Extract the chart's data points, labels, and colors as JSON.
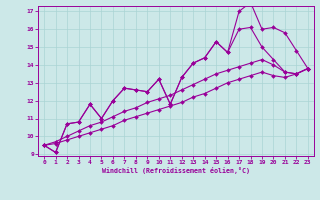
{
  "xlabel": "Windchill (Refroidissement éolien,°C)",
  "background_color": "#cce8e8",
  "line_color": "#990099",
  "grid_color": "#aad4d4",
  "series1_x": [
    0,
    1,
    2,
    3,
    4,
    5,
    6,
    7,
    8,
    9,
    10,
    11,
    12,
    13,
    14,
    15,
    16,
    17,
    18,
    19,
    20,
    21,
    22,
    23
  ],
  "series1_y": [
    9.5,
    9.1,
    10.7,
    10.8,
    11.8,
    11.0,
    12.0,
    12.7,
    12.6,
    12.5,
    13.2,
    11.8,
    13.3,
    14.1,
    14.4,
    15.3,
    14.7,
    17.0,
    17.5,
    16.0,
    16.1,
    15.8,
    14.8,
    13.8
  ],
  "series2_x": [
    0,
    1,
    2,
    3,
    4,
    5,
    6,
    7,
    8,
    9,
    10,
    11,
    12,
    13,
    14,
    15,
    16,
    17,
    18,
    19,
    20,
    21,
    22,
    23
  ],
  "series2_y": [
    9.5,
    9.1,
    10.7,
    10.8,
    11.8,
    11.0,
    12.0,
    12.7,
    12.6,
    12.5,
    13.2,
    11.8,
    13.3,
    14.1,
    14.4,
    15.3,
    14.7,
    16.0,
    16.1,
    15.0,
    14.3,
    13.6,
    13.5,
    13.8
  ],
  "series3_x": [
    0,
    1,
    2,
    3,
    4,
    5,
    6,
    7,
    8,
    9,
    10,
    11,
    12,
    13,
    14,
    15,
    16,
    17,
    18,
    19,
    20,
    21,
    22,
    23
  ],
  "series3_y": [
    9.5,
    9.7,
    10.0,
    10.3,
    10.6,
    10.8,
    11.1,
    11.4,
    11.6,
    11.9,
    12.1,
    12.3,
    12.6,
    12.9,
    13.2,
    13.5,
    13.7,
    13.9,
    14.1,
    14.3,
    14.0,
    13.6,
    13.5,
    13.8
  ],
  "series4_x": [
    0,
    1,
    2,
    3,
    4,
    5,
    6,
    7,
    8,
    9,
    10,
    11,
    12,
    13,
    14,
    15,
    16,
    17,
    18,
    19,
    20,
    21,
    22,
    23
  ],
  "series4_y": [
    9.5,
    9.6,
    9.8,
    10.0,
    10.2,
    10.4,
    10.6,
    10.9,
    11.1,
    11.3,
    11.5,
    11.7,
    11.9,
    12.2,
    12.4,
    12.7,
    13.0,
    13.2,
    13.4,
    13.6,
    13.4,
    13.3,
    13.5,
    13.8
  ],
  "ylim": [
    9,
    17
  ],
  "xlim": [
    -0.5,
    23.5
  ],
  "yticks": [
    9,
    10,
    11,
    12,
    13,
    14,
    15,
    16,
    17
  ],
  "xticks": [
    0,
    1,
    2,
    3,
    4,
    5,
    6,
    7,
    8,
    9,
    10,
    11,
    12,
    13,
    14,
    15,
    16,
    17,
    18,
    19,
    20,
    21,
    22,
    23
  ]
}
